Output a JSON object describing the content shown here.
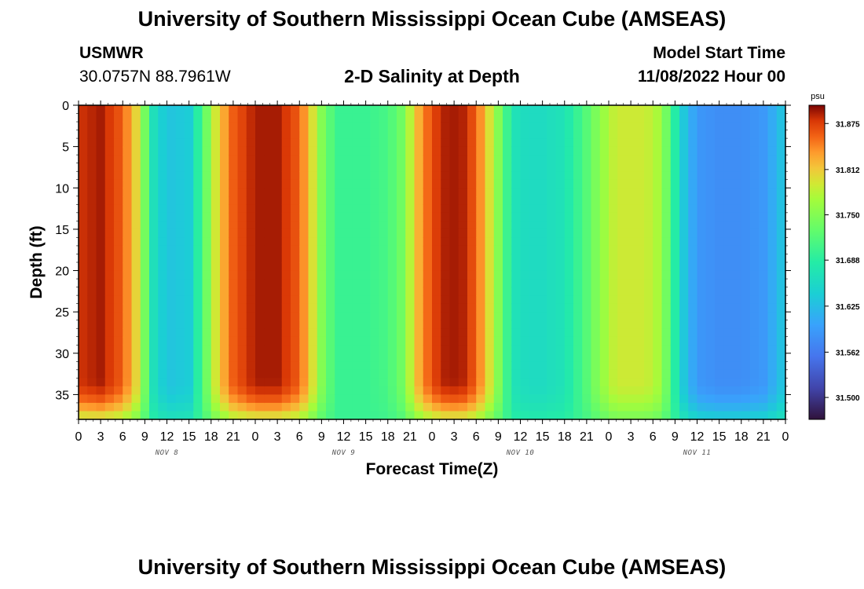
{
  "header": {
    "title": "University of Southern Mississippi Ocean Cube (AMSEAS)",
    "station": "USMWR",
    "location": "30.0757N  88.7961W",
    "subtitle": "2-D Salinity at Depth",
    "model_start_label": "Model Start Time",
    "model_start_value": "11/08/2022 Hour 00"
  },
  "footer": {
    "title": "University of Southern Mississippi Ocean Cube (AMSEAS)"
  },
  "chart_data": {
    "type": "heatmap",
    "xlabel": "Forecast Time(Z)",
    "ylabel": "Depth (ft)",
    "ylim": [
      0,
      38
    ],
    "y_ticks": [
      "0",
      "5",
      "10",
      "15",
      "20",
      "25",
      "30",
      "35"
    ],
    "x_tick_labels": [
      "0",
      "3",
      "6",
      "9",
      "12",
      "15",
      "18",
      "21",
      "0",
      "3",
      "6",
      "9",
      "12",
      "15",
      "18",
      "21",
      "0",
      "3",
      "6",
      "9",
      "12",
      "15",
      "18",
      "21",
      "0",
      "3",
      "6",
      "9",
      "12",
      "15",
      "18",
      "21",
      "0"
    ],
    "day_labels": [
      "NOV 8",
      "NOV 9",
      "NOV 10",
      "NOV 11"
    ],
    "colorbar": {
      "unit": "psu",
      "min": 31.47,
      "max": 31.9,
      "tick_labels": [
        "31.875",
        "31.812",
        "31.750",
        "31.688",
        "31.625",
        "31.562",
        "31.500"
      ]
    },
    "surface_salinity_by_hour": [
      [
        0,
        31.88
      ],
      [
        3,
        31.89
      ],
      [
        6,
        31.86
      ],
      [
        8,
        31.8
      ],
      [
        9,
        31.74
      ],
      [
        10,
        31.67
      ],
      [
        12,
        31.63
      ],
      [
        15,
        31.64
      ],
      [
        17,
        31.72
      ],
      [
        19,
        31.81
      ],
      [
        21,
        31.86
      ],
      [
        24,
        31.89
      ],
      [
        27,
        31.89
      ],
      [
        30,
        31.86
      ],
      [
        32,
        31.79
      ],
      [
        33,
        31.75
      ],
      [
        35,
        31.7
      ],
      [
        36,
        31.7
      ],
      [
        39,
        31.7
      ],
      [
        42,
        31.71
      ],
      [
        44,
        31.74
      ],
      [
        46,
        31.82
      ],
      [
        48,
        31.87
      ],
      [
        50,
        31.89
      ],
      [
        52,
        31.89
      ],
      [
        54,
        31.86
      ],
      [
        56,
        31.79
      ],
      [
        57,
        31.75
      ],
      [
        59,
        31.67
      ],
      [
        61,
        31.66
      ],
      [
        63,
        31.66
      ],
      [
        66,
        31.67
      ],
      [
        69,
        31.72
      ],
      [
        71,
        31.76
      ],
      [
        73,
        31.79
      ],
      [
        75,
        31.79
      ],
      [
        77,
        31.79
      ],
      [
        79,
        31.77
      ],
      [
        80,
        31.73
      ],
      [
        82,
        31.64
      ],
      [
        84,
        31.59
      ],
      [
        87,
        31.58
      ],
      [
        90,
        31.58
      ],
      [
        93,
        31.59
      ],
      [
        95,
        31.62
      ],
      [
        96,
        31.64
      ]
    ]
  }
}
